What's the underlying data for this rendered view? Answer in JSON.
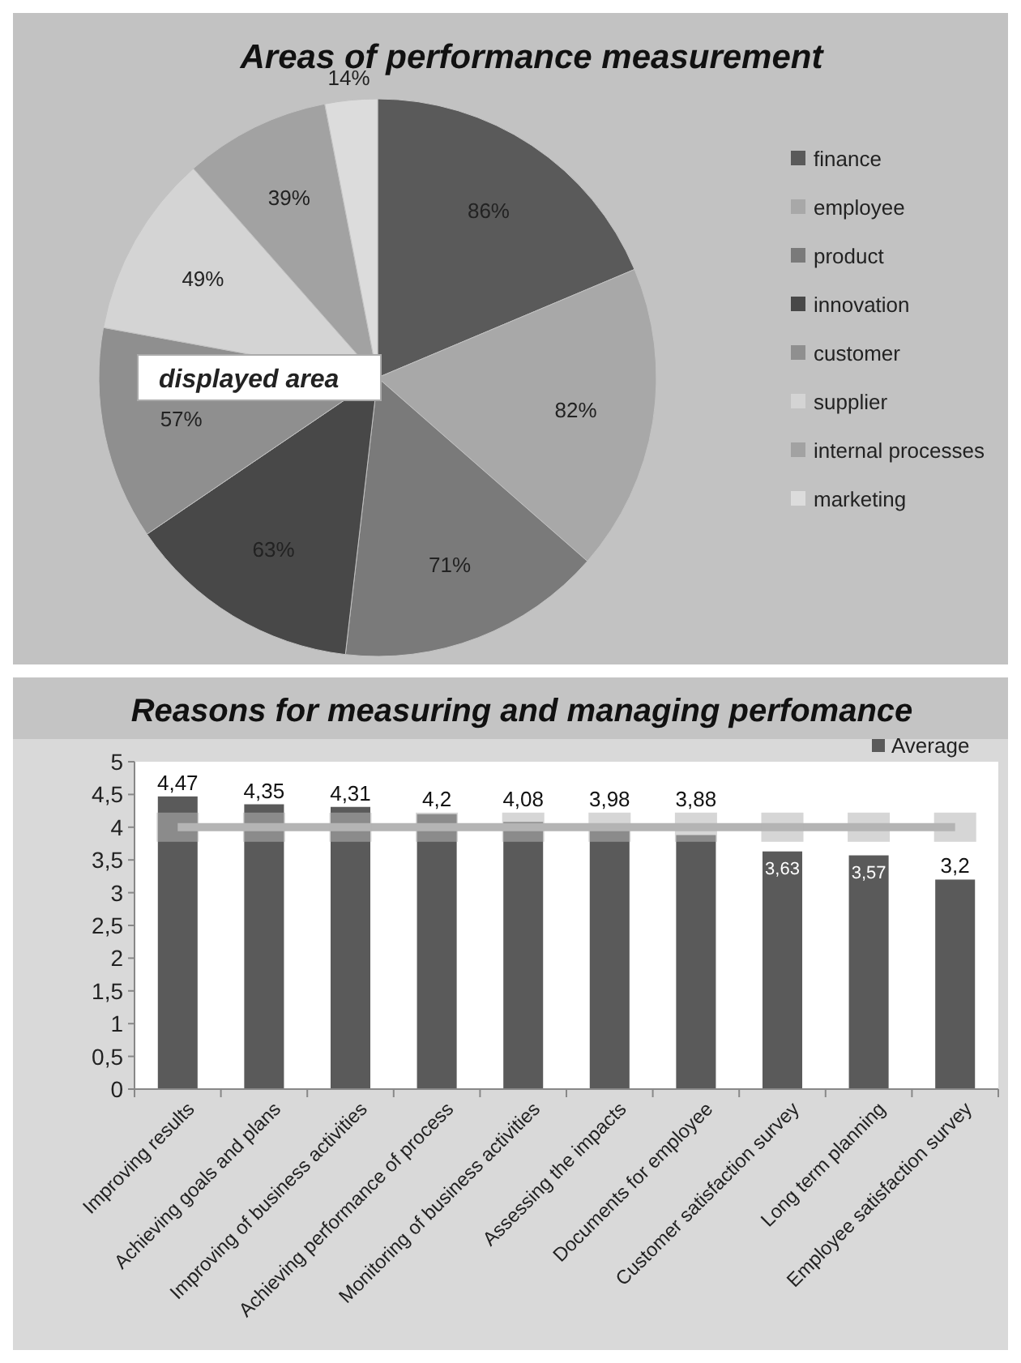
{
  "chart_data": [
    {
      "type": "pie",
      "title": "Areas of performance measurement",
      "categories": [
        "finance",
        "employee",
        "product",
        "innovation",
        "customer",
        "supplier",
        "internal processes",
        "marketing"
      ],
      "values": [
        86,
        82,
        71,
        63,
        57,
        49,
        39,
        14
      ],
      "value_labels": [
        "86%",
        "82%",
        "71%",
        "63%",
        "57%",
        "49%",
        "39%",
        "14%"
      ],
      "colors": [
        "#5a5a5a",
        "#a8a8a8",
        "#7a7a7a",
        "#484848",
        "#8f8f8f",
        "#d4d4d4",
        "#a2a2a2",
        "#dcdcdc"
      ],
      "legend": "right",
      "annotations": [
        "displayed area"
      ]
    },
    {
      "type": "bar",
      "title": "Reasons for measuring and managing perfomance",
      "categories": [
        "Improving results",
        "Achieving goals and  plans",
        "Improving of business activities",
        "Achieving performance of process",
        "Monitoring of business activities",
        "Assessing the impacts",
        "Documents for employee",
        "Customer satisfaction survey",
        "Long term planning",
        "Employee satisfaction survey"
      ],
      "series": [
        {
          "name": "Average",
          "color": "#5a5a5a",
          "values": [
            4.47,
            4.35,
            4.31,
            4.2,
            4.08,
            3.98,
            3.88,
            3.63,
            3.57,
            3.2
          ],
          "value_labels": [
            "4,47",
            "4,35",
            "4,31",
            "4,2",
            "4,08",
            "3,98",
            "3,88",
            "3,63",
            "3,57",
            "3,2"
          ]
        },
        {
          "type": "line",
          "color": "#b4b4b4",
          "values": [
            4,
            4,
            4,
            4,
            4,
            4,
            4,
            4,
            4,
            4
          ]
        }
      ],
      "marker": "square",
      "ylim": [
        0,
        5
      ],
      "yticks": [
        0,
        {
          "value": 0.5,
          "label": "0,5"
        },
        1,
        {
          "value": 1.5,
          "label": "1,5"
        },
        2,
        {
          "value": 2.5,
          "label": "2,5"
        },
        3,
        {
          "value": 3.5,
          "label": "3,5"
        },
        4,
        {
          "value": 4.5,
          "label": "4,5"
        },
        5
      ],
      "legend": "top right",
      "grid": false
    }
  ]
}
